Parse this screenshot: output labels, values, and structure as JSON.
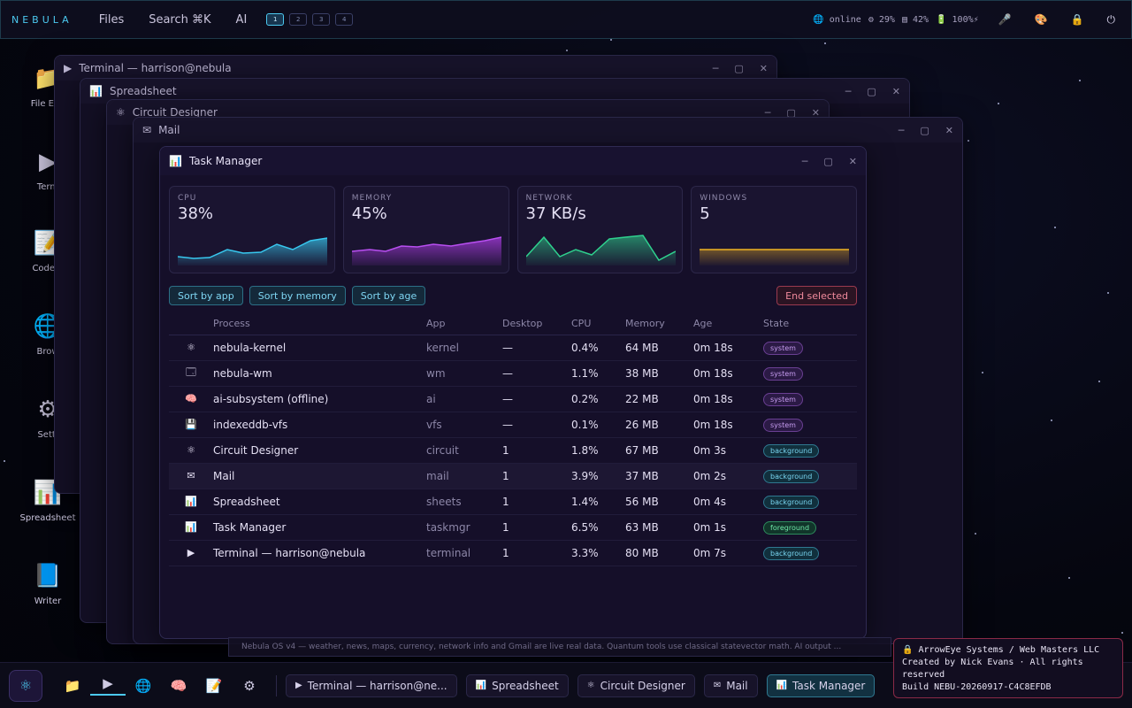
{
  "topbar": {
    "brand": "NEBULA",
    "menu": [
      "Files",
      "Search ⌘K",
      "AI"
    ],
    "workspaces": [
      "1",
      "2",
      "3",
      "4"
    ],
    "status": {
      "net": "🌐 online",
      "cpu": "⚙ 29%",
      "mem": "▤ 42%",
      "battery": "🔋 100%⚡"
    },
    "icons": [
      "microphone-icon",
      "palette-icon",
      "lock-icon",
      "power-icon"
    ]
  },
  "desktop": [
    {
      "label": "File Exp",
      "icon": "📁"
    },
    {
      "label": "Term",
      "icon": "▶"
    },
    {
      "label": "Code E",
      "icon": "📝"
    },
    {
      "label": "Brow",
      "icon": "🌐"
    },
    {
      "label": "Setti",
      "icon": "⚙"
    },
    {
      "label": "Spreadsheet",
      "icon": "📊"
    },
    {
      "label": "Writer",
      "icon": "📘"
    }
  ],
  "windows": {
    "terminal": "Terminal — harrison@nebula",
    "spreadsheet": "Spreadsheet",
    "circuit": "Circuit Designer",
    "mail": "Mail"
  },
  "taskmgr": {
    "title": "Task Manager",
    "cards": [
      {
        "label": "CPU",
        "value": "38%",
        "color": "#38c8ef"
      },
      {
        "label": "MEMORY",
        "value": "45%",
        "color": "#a23ad8"
      },
      {
        "label": "NETWORK",
        "value": "37 KB/s",
        "color": "#2fd18e"
      },
      {
        "label": "WINDOWS",
        "value": "5",
        "color": "#f0b323"
      }
    ],
    "buttons": {
      "by_app": "Sort by app",
      "by_memory": "Sort by memory",
      "by_age": "Sort by age",
      "end": "End selected"
    },
    "columns": [
      "Process",
      "App",
      "Desktop",
      "CPU",
      "Memory",
      "Age",
      "State"
    ],
    "rows": [
      {
        "icon": "⚛",
        "process": "nebula-kernel",
        "app": "kernel",
        "desktop": "—",
        "cpu": "0.4%",
        "mem": "64 MB",
        "age": "0m 18s",
        "state": "system"
      },
      {
        "icon": "🗔",
        "process": "nebula-wm",
        "app": "wm",
        "desktop": "—",
        "cpu": "1.1%",
        "mem": "38 MB",
        "age": "0m 18s",
        "state": "system"
      },
      {
        "icon": "🧠",
        "process": "ai-subsystem (offline)",
        "app": "ai",
        "desktop": "—",
        "cpu": "0.2%",
        "mem": "22 MB",
        "age": "0m 18s",
        "state": "system"
      },
      {
        "icon": "💾",
        "process": "indexeddb-vfs",
        "app": "vfs",
        "desktop": "—",
        "cpu": "0.1%",
        "mem": "26 MB",
        "age": "0m 18s",
        "state": "system"
      },
      {
        "icon": "⚛",
        "process": "Circuit Designer",
        "app": "circuit",
        "desktop": "1",
        "cpu": "1.8%",
        "mem": "67 MB",
        "age": "0m 3s",
        "state": "background"
      },
      {
        "icon": "✉",
        "process": "Mail",
        "app": "mail",
        "desktop": "1",
        "cpu": "3.9%",
        "mem": "37 MB",
        "age": "0m 2s",
        "state": "background"
      },
      {
        "icon": "📊",
        "process": "Spreadsheet",
        "app": "sheets",
        "desktop": "1",
        "cpu": "1.4%",
        "mem": "56 MB",
        "age": "0m 4s",
        "state": "background"
      },
      {
        "icon": "📊",
        "process": "Task Manager",
        "app": "taskmgr",
        "desktop": "1",
        "cpu": "6.5%",
        "mem": "63 MB",
        "age": "0m 1s",
        "state": "foreground"
      },
      {
        "icon": "▶",
        "process": "Terminal — harrison@nebula",
        "app": "terminal",
        "desktop": "1",
        "cpu": "3.3%",
        "mem": "80 MB",
        "age": "0m 7s",
        "state": "background"
      }
    ]
  },
  "footer_strip": "Nebula OS v4 — weather, news, maps, currency, network info and Gmail are live real data. Quantum tools use classical statevector math. AI output ...",
  "taskbar": {
    "tasks": [
      {
        "icon": "▶",
        "label": "Terminal — harrison@ne..."
      },
      {
        "icon": "📊",
        "label": "Spreadsheet"
      },
      {
        "icon": "⚛",
        "label": "Circuit Designer"
      },
      {
        "icon": "✉",
        "label": "Mail"
      },
      {
        "icon": "📊",
        "label": "Task Manager"
      }
    ]
  },
  "notice": {
    "line1": "🔒 ArrowEye Systems / Web Masters LLC",
    "line2": "Created by Nick Evans · All rights reserved",
    "line3": "Build NEBU-20260917-C4C8EFDB"
  }
}
